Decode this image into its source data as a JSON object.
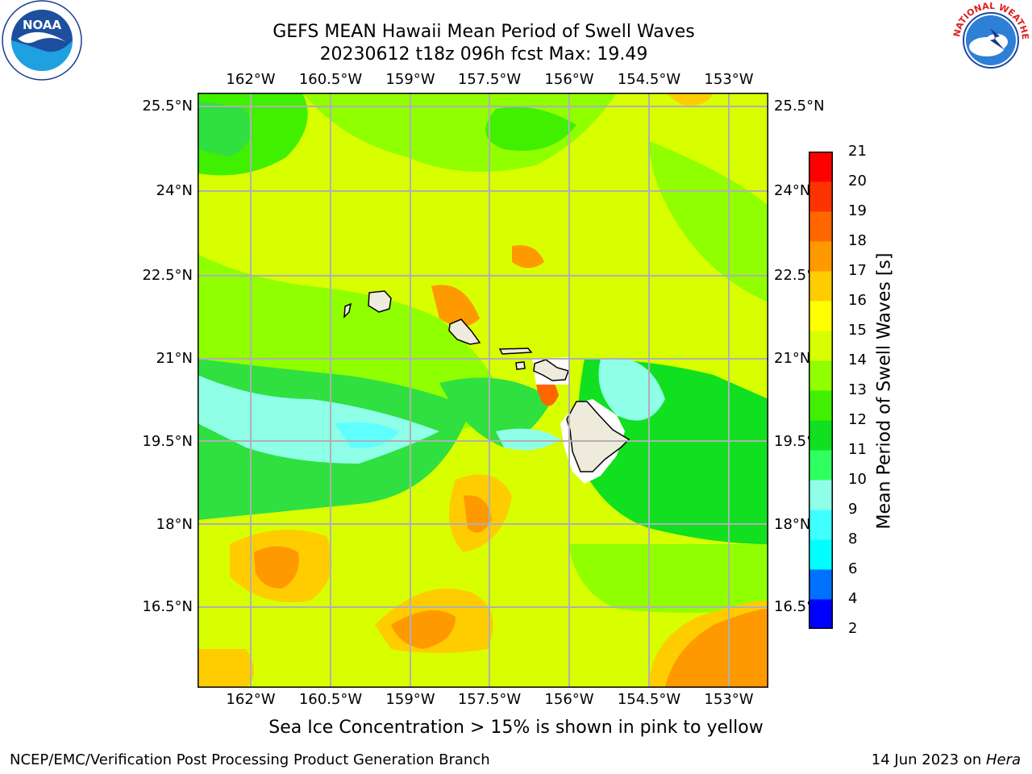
{
  "title": {
    "line1": "GEFS MEAN Hawaii Mean Period of Swell Waves",
    "line2": "20230612 t18z 096h fcst   Max: 19.49"
  },
  "axes": {
    "lon_top": [
      "162°W",
      "160.5°W",
      "159°W",
      "157.5°W",
      "156°W",
      "154.5°W",
      "153°W"
    ],
    "lon_bottom": [
      "162°W",
      "160.5°W",
      "159°W",
      "157.5°W",
      "156°W",
      "154.5°W",
      "153°W"
    ],
    "lat_left": [
      "25.5°N",
      "24°N",
      "22.5°N",
      "21°N",
      "19.5°N",
      "18°N",
      "16.5°N"
    ],
    "lat_right": [
      "25.5°N",
      "24°N",
      "22.5°N",
      "21°N",
      "19.5°N",
      "18°N",
      "16.5°N"
    ]
  },
  "colorbar": {
    "label": "Mean Period of Swell Waves [s]",
    "ticks": [
      "2",
      "4",
      "6",
      "8",
      "9",
      "10",
      "11",
      "12",
      "13",
      "14",
      "15",
      "16",
      "17",
      "18",
      "19",
      "20",
      "21"
    ],
    "colors": [
      "#0000ff",
      "#0070ff",
      "#00ffff",
      "#40ffff",
      "#90ffe8",
      "#30ff60",
      "#10e020",
      "#40f000",
      "#90ff00",
      "#d8ff00",
      "#ffff00",
      "#ffcc00",
      "#ff9900",
      "#ff6600",
      "#ff3300",
      "#ff0000"
    ],
    "colors_semantic": "2-4 blue to 20-21 red"
  },
  "map": {
    "region": "Hawaii",
    "grid_color": "#b0b0b0",
    "land_color": "#eeeadc"
  },
  "caption": "Sea Ice Concentration > 15% is shown in pink to yellow",
  "footer": {
    "left": "NCEP/EMC/Verification Post Processing Product Generation Branch",
    "right_prefix": "14 Jun 2023 on ",
    "right_host": "Hera"
  },
  "logos": {
    "noaa": "NOAA",
    "noaa_ring": "NATIONAL OCEANIC AND ATMOSPHERIC ADMINISTRATION · U.S. DEPARTMENT OF COMMERCE",
    "nws_ring": "NATIONAL WEATHER SERVICE"
  }
}
